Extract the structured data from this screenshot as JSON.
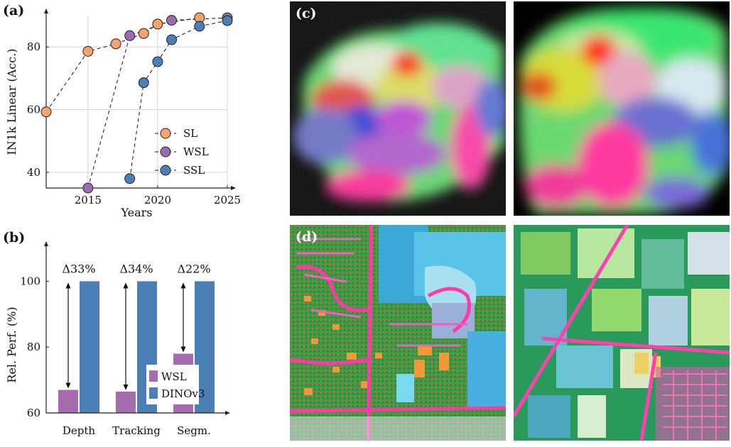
{
  "panels": {
    "a": "(a)",
    "b": "(b)",
    "c": "(c)",
    "d": "(d)"
  },
  "chart_data": [
    {
      "type": "scatter",
      "panel": "(a)",
      "title": "",
      "xlabel": "Years",
      "ylabel": "IN1k Linear (Acc.)",
      "xlim": [
        2012,
        2025
      ],
      "ylim": [
        35,
        90
      ],
      "xticks": [
        "2015",
        "2020",
        "2025"
      ],
      "xtick_values": [
        2015,
        2020,
        2025
      ],
      "yticks": [
        "40",
        "60",
        "80"
      ],
      "ytick_values": [
        40,
        60,
        80
      ],
      "grid": true,
      "legend": "bottom-right",
      "line_style": "dashed",
      "series": [
        {
          "name": "SL",
          "color": "#f6a36f",
          "x": [
            2012,
            2015,
            2017,
            2019,
            2020,
            2023
          ],
          "y": [
            59.3,
            78.6,
            81,
            84.3,
            87.3,
            89.3
          ]
        },
        {
          "name": "WSL",
          "color": "#9b6aaf",
          "x": [
            2015,
            2018,
            2021,
            2025
          ],
          "y": [
            35,
            83.6,
            88.5,
            89.3
          ]
        },
        {
          "name": "SSL",
          "color": "#4a80b6",
          "x": [
            2018,
            2019,
            2020,
            2021,
            2023,
            2025
          ],
          "y": [
            38,
            68.6,
            75.3,
            82.3,
            86.6,
            88.4
          ]
        }
      ]
    },
    {
      "type": "bar",
      "panel": "(b)",
      "title": "",
      "xlabel": "",
      "ylabel": "Rel. Perf. (%)",
      "ylim": [
        60,
        110
      ],
      "yticks": [
        "60",
        "80",
        "100"
      ],
      "ytick_values": [
        60,
        80,
        100
      ],
      "categories": [
        "Depth",
        "Tracking",
        "Segm."
      ],
      "legend": "bottom-right",
      "series": [
        {
          "name": "WSL",
          "color": "#a76bb0",
          "values": [
            67,
            66.5,
            78
          ]
        },
        {
          "name": "DINOv3",
          "color": "#4a80b6",
          "values": [
            100,
            100,
            100
          ]
        }
      ],
      "annotations": [
        "Δ33%",
        "Δ34%",
        "Δ22%"
      ]
    }
  ]
}
